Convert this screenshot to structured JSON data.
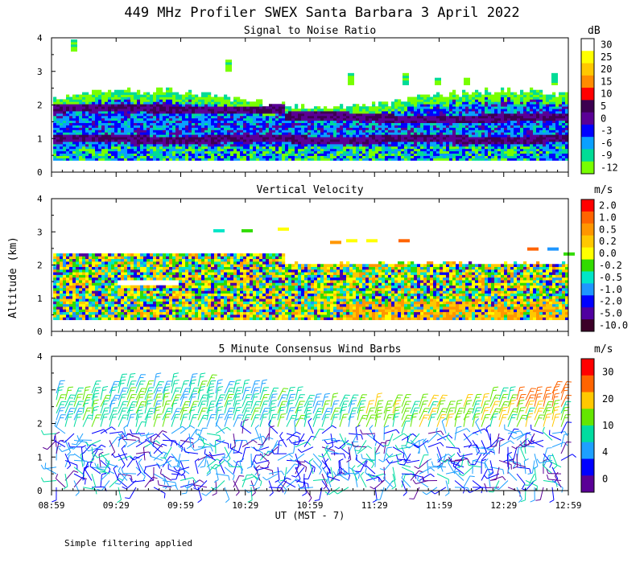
{
  "figure": {
    "title": "449 MHz Profiler SWEX Santa Barbara  3 April 2022",
    "ylabel": "Altitude (km)",
    "xlabel": "UT  (MST - 7)",
    "footnote": "Simple filtering applied"
  },
  "chart_data": [
    {
      "type": "heatmap",
      "title": "Signal to Noise Ratio",
      "ylim": [
        0,
        4
      ],
      "y_ticks": [
        "0",
        "1",
        "2",
        "3",
        "4"
      ],
      "x_ticks": [
        "08:59",
        "09:29",
        "09:59",
        "10:29",
        "10:59",
        "11:29",
        "11:59",
        "12:29",
        "12:59"
      ],
      "colorbar": {
        "unit": "dB",
        "labels": [
          "30",
          "25",
          "20",
          "15",
          "10",
          "5",
          "0",
          "-3",
          "-6",
          "-9",
          "-12"
        ],
        "colors": [
          "#ffffff",
          "#ffff00",
          "#ffc800",
          "#ff8c00",
          "#ff0000",
          "#3c0050",
          "#5a0096",
          "#0000ff",
          "#0aa0ff",
          "#00dc96",
          "#78ff00"
        ]
      }
    },
    {
      "type": "heatmap",
      "title": "Vertical Velocity",
      "ylim": [
        0,
        4
      ],
      "y_ticks": [
        "0",
        "1",
        "2",
        "3",
        "4"
      ],
      "x_ticks": [
        "08:59",
        "09:29",
        "09:59",
        "10:29",
        "10:59",
        "11:29",
        "11:59",
        "12:29",
        "12:59"
      ],
      "colorbar": {
        "unit": "m/s",
        "labels": [
          "2.0",
          "1.0",
          "0.5",
          "0.2",
          "0.0",
          "-0.2",
          "-0.5",
          "-1.0",
          "-2.0",
          "-5.0",
          "-10.0"
        ],
        "colors": [
          "#ff0000",
          "#ff6400",
          "#ff9600",
          "#ffc800",
          "#ffff00",
          "#32dc00",
          "#00e6c8",
          "#1e96ff",
          "#0000ff",
          "#5000a0",
          "#3c0028"
        ]
      }
    },
    {
      "type": "scatter",
      "title": "5 Minute Consensus Wind Barbs",
      "ylim": [
        0,
        4
      ],
      "y_ticks": [
        "0",
        "1",
        "2",
        "3",
        "4"
      ],
      "x_ticks": [
        "08:59",
        "09:29",
        "09:59",
        "10:29",
        "10:59",
        "11:29",
        "11:59",
        "12:29",
        "12:59"
      ],
      "colorbar": {
        "unit": "m/s",
        "labels": [
          "30",
          "20",
          "10",
          "4",
          "0"
        ],
        "colors": [
          "#ff0000",
          "#ff6400",
          "#ffc800",
          "#64e600",
          "#00dca0",
          "#1ea0ff",
          "#0000ff",
          "#5a0096"
        ]
      }
    }
  ]
}
